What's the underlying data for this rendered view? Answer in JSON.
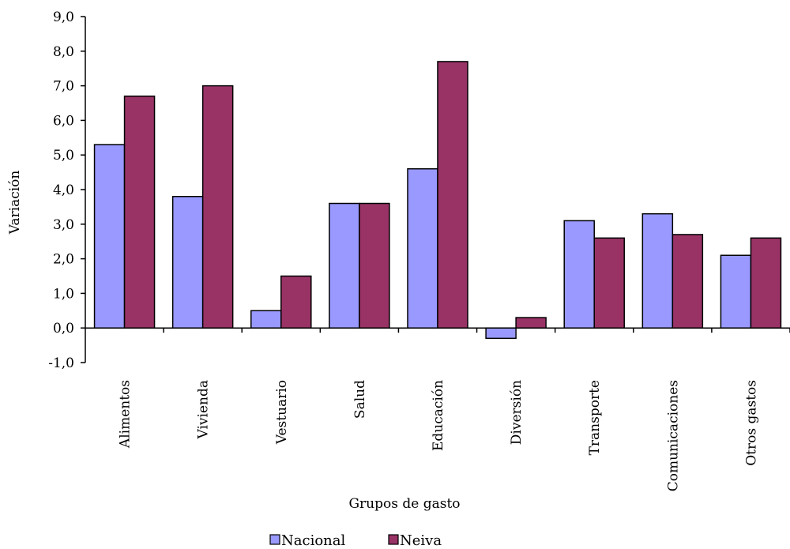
{
  "chart_data": {
    "type": "bar",
    "title": "",
    "xlabel": "Grupos de gasto",
    "ylabel": "Variación",
    "ylim": [
      -1,
      9
    ],
    "yticks": [
      "9,0",
      "8,0",
      "7,0",
      "6,0",
      "5,0",
      "4,0",
      "3,0",
      "2,0",
      "1,0",
      "0,0",
      "-1,0"
    ],
    "categories": [
      "Alimentos",
      "Vivienda",
      "Vestuario",
      "Salud",
      "Educación",
      "Diversión",
      "Transporte",
      "Comunicaciones",
      "Otros gastos"
    ],
    "series": [
      {
        "name": "Nacional",
        "color": "#9999ff",
        "values": [
          5.3,
          3.8,
          0.5,
          3.6,
          4.6,
          -0.3,
          3.1,
          3.3,
          2.1
        ]
      },
      {
        "name": "Neiva",
        "color": "#993366",
        "values": [
          6.7,
          7.0,
          1.5,
          3.6,
          7.7,
          0.3,
          2.6,
          2.7,
          2.6
        ]
      }
    ],
    "legend": {
      "position": "bottom"
    },
    "grid": false
  }
}
